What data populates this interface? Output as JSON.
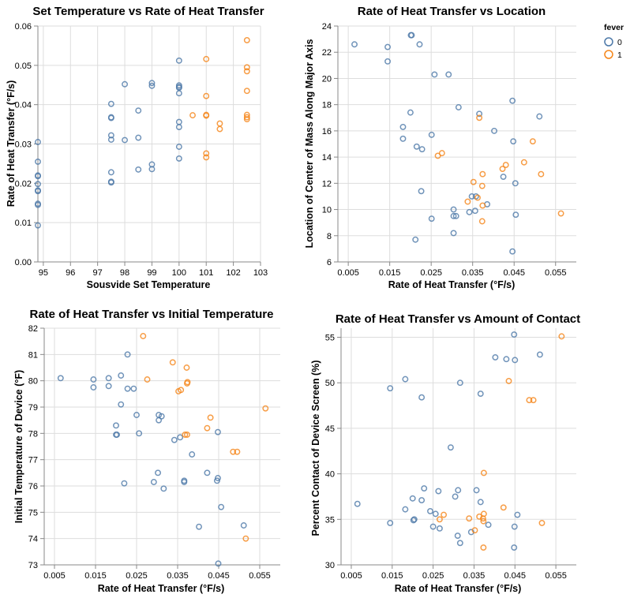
{
  "legend": {
    "title": "fever",
    "entries": [
      {
        "label": "0",
        "color": "#4c78a8"
      },
      {
        "label": "1",
        "color": "#f58518"
      }
    ]
  },
  "chart_data": [
    {
      "type": "scatter",
      "title": "Set Temperature vs Rate of Heat Transfer",
      "xlabel": "Sousvide Set Temperature",
      "ylabel": "Rate of Heat Transfer (°F/s)",
      "xlim": [
        94.8,
        103
      ],
      "ylim": [
        0,
        0.06
      ],
      "x_ticks": [
        "95",
        "96",
        "97",
        "98",
        "99",
        "100",
        "101",
        "102",
        "103"
      ],
      "y_ticks": [
        "0.00",
        "0.01",
        "0.02",
        "0.03",
        "0.04",
        "0.05",
        "0.06"
      ],
      "grid": true,
      "series": [
        {
          "name": "0",
          "color": "#4c78a8",
          "points": [
            [
              94.8,
              0.0305
            ],
            [
              94.8,
              0.0255
            ],
            [
              94.8,
              0.022
            ],
            [
              94.8,
              0.0218
            ],
            [
              94.8,
              0.0198
            ],
            [
              94.8,
              0.0182
            ],
            [
              94.8,
              0.018
            ],
            [
              94.8,
              0.0148
            ],
            [
              94.8,
              0.0145
            ],
            [
              94.8,
              0.0093
            ],
            [
              97.5,
              0.0402
            ],
            [
              97.5,
              0.0368
            ],
            [
              97.5,
              0.0366
            ],
            [
              97.5,
              0.0322
            ],
            [
              97.5,
              0.0311
            ],
            [
              97.5,
              0.0228
            ],
            [
              97.5,
              0.0204
            ],
            [
              97.5,
              0.0202
            ],
            [
              98,
              0.0452
            ],
            [
              98,
              0.031
            ],
            [
              98.5,
              0.0385
            ],
            [
              98.5,
              0.0316
            ],
            [
              98.5,
              0.0235
            ],
            [
              99,
              0.0455
            ],
            [
              99,
              0.0448
            ],
            [
              99,
              0.0248
            ],
            [
              99,
              0.0236
            ],
            [
              100,
              0.0512
            ],
            [
              100,
              0.0449
            ],
            [
              100,
              0.0445
            ],
            [
              100,
              0.0443
            ],
            [
              100,
              0.0429
            ],
            [
              100,
              0.0356
            ],
            [
              100,
              0.0343
            ],
            [
              100,
              0.0293
            ],
            [
              100,
              0.0263
            ]
          ]
        },
        {
          "name": "1",
          "color": "#f58518",
          "points": [
            [
              100.5,
              0.0373
            ],
            [
              101,
              0.0516
            ],
            [
              101,
              0.0422
            ],
            [
              101,
              0.0374
            ],
            [
              101,
              0.0372
            ],
            [
              101,
              0.0276
            ],
            [
              101,
              0.0266
            ],
            [
              101.5,
              0.0352
            ],
            [
              101.5,
              0.0338
            ],
            [
              102.5,
              0.0564
            ],
            [
              102.5,
              0.0495
            ],
            [
              102.5,
              0.0485
            ],
            [
              102.5,
              0.0435
            ],
            [
              102.5,
              0.0374
            ],
            [
              102.5,
              0.0368
            ],
            [
              102.5,
              0.0363
            ]
          ]
        }
      ]
    },
    {
      "type": "scatter",
      "title": "Rate of Heat Transfer vs Location",
      "xlabel": "Rate of Heat Transfer (°F/s)",
      "ylabel": "Location of Center of Mass Along Major Axis",
      "xlim": [
        0.0025,
        0.06
      ],
      "ylim": [
        6,
        24
      ],
      "x_ticks": [
        "0.005",
        "0.015",
        "0.025",
        "0.035",
        "0.045",
        "0.055"
      ],
      "y_ticks": [
        "6",
        "8",
        "10",
        "12",
        "14",
        "16",
        "18",
        "20",
        "22",
        "24"
      ],
      "grid": true,
      "series": [
        {
          "name": "0",
          "color": "#4c78a8",
          "points": [
            [
              0.0065,
              22.6
            ],
            [
              0.0145,
              22.4
            ],
            [
              0.0145,
              21.3
            ],
            [
              0.0201,
              23.3
            ],
            [
              0.0203,
              23.3
            ],
            [
              0.0222,
              22.6
            ],
            [
              0.0258,
              20.3
            ],
            [
              0.0292,
              20.3
            ],
            [
              0.02,
              17.4
            ],
            [
              0.0182,
              16.3
            ],
            [
              0.0182,
              15.4
            ],
            [
              0.0251,
              15.7
            ],
            [
              0.0215,
              14.8
            ],
            [
              0.0228,
              14.6
            ],
            [
              0.0316,
              17.8
            ],
            [
              0.0366,
              17.3
            ],
            [
              0.0446,
              18.3
            ],
            [
              0.0511,
              17.1
            ],
            [
              0.0402,
              16.0
            ],
            [
              0.0448,
              15.2
            ],
            [
              0.0226,
              11.4
            ],
            [
              0.0348,
              11.0
            ],
            [
              0.0453,
              12.0
            ],
            [
              0.0424,
              12.5
            ],
            [
              0.0304,
              10.0
            ],
            [
              0.0342,
              9.8
            ],
            [
              0.0356,
              9.9
            ],
            [
              0.0385,
              10.4
            ],
            [
              0.0304,
              9.5
            ],
            [
              0.031,
              9.5
            ],
            [
              0.0251,
              9.3
            ],
            [
              0.0454,
              9.6
            ],
            [
              0.0212,
              7.7
            ],
            [
              0.0304,
              8.2
            ],
            [
              0.0446,
              6.8
            ],
            [
              0.0358,
              11.0
            ]
          ]
        },
        {
          "name": "1",
          "color": "#f58518",
          "points": [
            [
              0.0366,
              17.0
            ],
            [
              0.0495,
              15.2
            ],
            [
              0.0266,
              14.1
            ],
            [
              0.0276,
              14.3
            ],
            [
              0.0474,
              13.6
            ],
            [
              0.043,
              13.4
            ],
            [
              0.0422,
              13.1
            ],
            [
              0.0374,
              12.7
            ],
            [
              0.0515,
              12.7
            ],
            [
              0.0352,
              12.1
            ],
            [
              0.0373,
              11.8
            ],
            [
              0.0338,
              10.6
            ],
            [
              0.0362,
              10.9
            ],
            [
              0.0374,
              10.3
            ],
            [
              0.0563,
              9.7
            ],
            [
              0.0373,
              9.1
            ]
          ]
        }
      ]
    },
    {
      "type": "scatter",
      "title": "Rate of Heat Transfer vs Initial Temperature",
      "xlabel": "Rate of Heat Transfer (°F/s)",
      "ylabel": "Initial Temperature of Device (°F)",
      "xlim": [
        0.0025,
        0.06
      ],
      "ylim": [
        73,
        82
      ],
      "x_ticks": [
        "0.005",
        "0.015",
        "0.025",
        "0.035",
        "0.045",
        "0.055"
      ],
      "y_ticks": [
        "73",
        "74",
        "75",
        "76",
        "77",
        "78",
        "79",
        "80",
        "81",
        "82"
      ],
      "grid": true,
      "series": [
        {
          "name": "0",
          "color": "#4c78a8",
          "points": [
            [
              0.0065,
              80.1
            ],
            [
              0.0145,
              80.05
            ],
            [
              0.0145,
              79.75
            ],
            [
              0.0182,
              80.1
            ],
            [
              0.0182,
              79.8
            ],
            [
              0.0212,
              80.2
            ],
            [
              0.0228,
              81.0
            ],
            [
              0.0228,
              79.7
            ],
            [
              0.0243,
              79.7
            ],
            [
              0.0212,
              79.1
            ],
            [
              0.02,
              78.3
            ],
            [
              0.02,
              77.95
            ],
            [
              0.0202,
              77.95
            ],
            [
              0.025,
              78.7
            ],
            [
              0.0256,
              78.0
            ],
            [
              0.0304,
              78.7
            ],
            [
              0.0304,
              78.5
            ],
            [
              0.0311,
              78.65
            ],
            [
              0.0342,
              77.75
            ],
            [
              0.0356,
              77.85
            ],
            [
              0.0385,
              77.2
            ],
            [
              0.0448,
              78.05
            ],
            [
              0.0422,
              76.5
            ],
            [
              0.0448,
              76.3
            ],
            [
              0.0446,
              76.2
            ],
            [
              0.0366,
              76.2
            ],
            [
              0.0366,
              76.15
            ],
            [
              0.0292,
              76.15
            ],
            [
              0.022,
              76.1
            ],
            [
              0.0316,
              75.9
            ],
            [
              0.0302,
              76.5
            ],
            [
              0.0456,
              75.2
            ],
            [
              0.0402,
              74.45
            ],
            [
              0.0511,
              74.5
            ],
            [
              0.0449,
              73.05
            ]
          ]
        },
        {
          "name": "1",
          "color": "#f58518",
          "points": [
            [
              0.0266,
              81.7
            ],
            [
              0.0276,
              80.05
            ],
            [
              0.0338,
              80.7
            ],
            [
              0.0372,
              80.5
            ],
            [
              0.0374,
              79.95
            ],
            [
              0.0373,
              79.9
            ],
            [
              0.0352,
              79.6
            ],
            [
              0.0358,
              79.65
            ],
            [
              0.0368,
              77.95
            ],
            [
              0.0373,
              77.95
            ],
            [
              0.043,
              78.6
            ],
            [
              0.0422,
              78.2
            ],
            [
              0.0485,
              77.3
            ],
            [
              0.0495,
              77.3
            ],
            [
              0.0564,
              78.95
            ],
            [
              0.0516,
              74.0
            ]
          ]
        }
      ]
    },
    {
      "type": "scatter",
      "title": "Rate of Heat Transfer vs Amount of Contact",
      "xlabel": "Rate of Heat Transfer (°F/s)",
      "ylabel": "Percent Contact of Device Screen (%)",
      "xlim": [
        0.0025,
        0.06
      ],
      "ylim": [
        30,
        56
      ],
      "x_ticks": [
        "0.005",
        "0.015",
        "0.025",
        "0.035",
        "0.045",
        "0.055"
      ],
      "y_ticks": [
        "30",
        "35",
        "40",
        "45",
        "50",
        "55"
      ],
      "grid": true,
      "series": [
        {
          "name": "0",
          "color": "#4c78a8",
          "points": [
            [
              0.0448,
              55.3
            ],
            [
              0.0402,
              52.8
            ],
            [
              0.0429,
              52.6
            ],
            [
              0.045,
              52.5
            ],
            [
              0.0511,
              53.1
            ],
            [
              0.0182,
              50.4
            ],
            [
              0.0145,
              49.4
            ],
            [
              0.0316,
              50.0
            ],
            [
              0.0366,
              48.8
            ],
            [
              0.0222,
              48.4
            ],
            [
              0.0293,
              42.9
            ],
            [
              0.0065,
              36.7
            ],
            [
              0.0145,
              34.6
            ],
            [
              0.0182,
              36.1
            ],
            [
              0.02,
              37.3
            ],
            [
              0.0204,
              35.0
            ],
            [
              0.0202,
              34.9
            ],
            [
              0.0222,
              37.1
            ],
            [
              0.0228,
              38.4
            ],
            [
              0.0243,
              35.9
            ],
            [
              0.025,
              34.2
            ],
            [
              0.0256,
              35.6
            ],
            [
              0.0263,
              38.1
            ],
            [
              0.0266,
              34.0
            ],
            [
              0.0304,
              37.5
            ],
            [
              0.0311,
              38.2
            ],
            [
              0.031,
              33.2
            ],
            [
              0.0316,
              32.4
            ],
            [
              0.0343,
              33.6
            ],
            [
              0.0356,
              38.2
            ],
            [
              0.0366,
              36.9
            ],
            [
              0.0385,
              34.4
            ],
            [
              0.0449,
              34.2
            ],
            [
              0.0456,
              35.5
            ],
            [
              0.0448,
              31.9
            ]
          ]
        },
        {
          "name": "1",
          "color": "#f58518",
          "points": [
            [
              0.0564,
              55.1
            ],
            [
              0.0435,
              50.2
            ],
            [
              0.0485,
              48.1
            ],
            [
              0.0495,
              48.1
            ],
            [
              0.0374,
              40.1
            ],
            [
              0.0422,
              36.3
            ],
            [
              0.0276,
              35.5
            ],
            [
              0.0266,
              35.0
            ],
            [
              0.0338,
              35.1
            ],
            [
              0.0363,
              35.3
            ],
            [
              0.0374,
              35.6
            ],
            [
              0.0372,
              35.1
            ],
            [
              0.0373,
              34.8
            ],
            [
              0.0352,
              33.8
            ],
            [
              0.0516,
              34.6
            ],
            [
              0.0373,
              31.9
            ]
          ]
        }
      ]
    }
  ]
}
